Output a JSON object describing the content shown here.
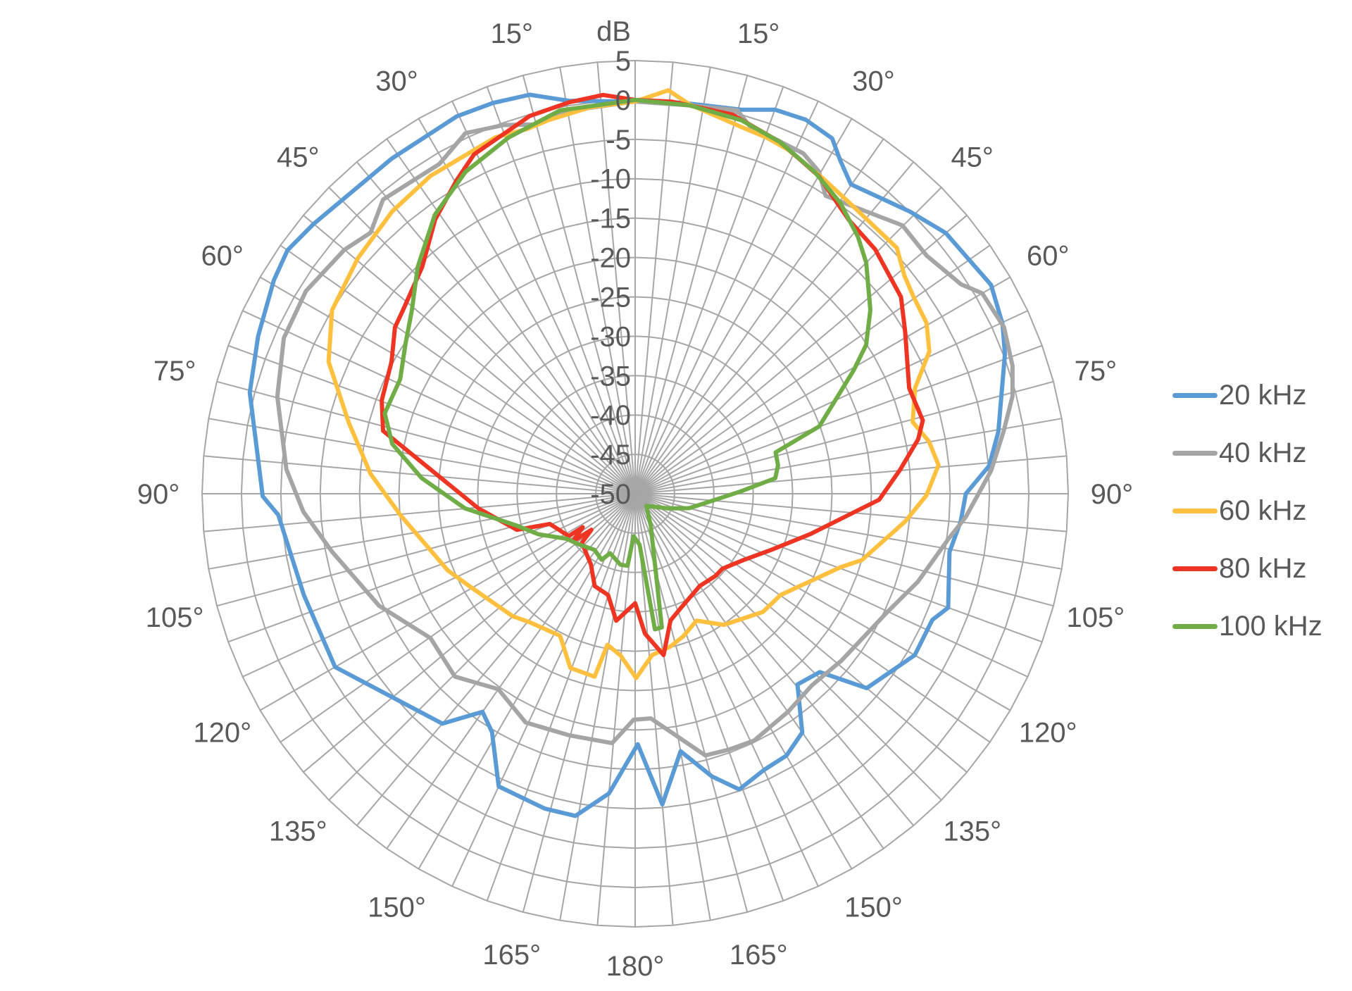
{
  "chart_data": {
    "type": "polar-line",
    "title": "",
    "radial_axis": {
      "label": "dB",
      "min": -50,
      "max": 5,
      "ticks": [
        5,
        0,
        -5,
        -10,
        -15,
        -20,
        -25,
        -30,
        -35,
        -40,
        -45,
        -50
      ],
      "tick_labels": [
        "5",
        "0",
        "-5",
        "-10",
        "-15",
        "-20",
        "-25",
        "-30",
        "-35",
        "-40",
        "-45",
        "-50"
      ]
    },
    "angular_axis": {
      "direction": "clockwise",
      "zero_at": "top",
      "spoke_step_deg": 5,
      "label_step_deg": 15,
      "tick_labels_right": [
        "15°",
        "30°",
        "45°",
        "60°",
        "75°",
        "90°",
        "105°",
        "120°",
        "135°",
        "150°",
        "165°"
      ],
      "tick_labels_left": [
        "15°",
        "30°",
        "45°",
        "60°",
        "75°",
        "90°",
        "105°",
        "120°",
        "135°",
        "150°",
        "165°"
      ],
      "bottom_label": "180°"
    },
    "grid": true,
    "legend_position": "right",
    "series": [
      {
        "name": "20 kHz",
        "color": "#5b9bd5",
        "points": [
          [
            0,
            -0.2
          ],
          [
            6.7,
            0
          ],
          [
            15.5,
            0.6
          ],
          [
            20,
            1.9
          ],
          [
            24.5,
            2.2
          ],
          [
            29,
            1.6
          ],
          [
            31.6,
            -0.3
          ],
          [
            34.9,
            -2.1
          ],
          [
            44.2,
            0
          ],
          [
            50,
            1.5
          ],
          [
            59.6,
            2.4
          ],
          [
            65.2,
            1.4
          ],
          [
            69.3,
            0.2
          ],
          [
            80.3,
            -3.2
          ],
          [
            85.5,
            -4.9
          ],
          [
            90,
            -8
          ],
          [
            94.8,
            -8.5
          ],
          [
            100.5,
            -9.4
          ],
          [
            110,
            -7.7
          ],
          [
            113,
            -9
          ],
          [
            120,
            -9
          ],
          [
            130,
            -11.6
          ],
          [
            134,
            -17.4
          ],
          [
            139.6,
            -18.2
          ],
          [
            145,
            -13
          ],
          [
            150,
            -11.6
          ],
          [
            155,
            -11.3
          ],
          [
            160.6,
            -10.2
          ],
          [
            164.8,
            -12.8
          ],
          [
            170,
            -16.8
          ],
          [
            175,
            -10.4
          ],
          [
            179.4,
            -18.2
          ],
          [
            185,
            -11.8
          ],
          [
            190.5,
            -8.4
          ],
          [
            196,
            -8.4
          ],
          [
            205,
            -9
          ],
          [
            211,
            -14.7
          ],
          [
            215,
            -16.2
          ],
          [
            220,
            -11.9
          ],
          [
            240,
            -6
          ],
          [
            253,
            -6
          ],
          [
            266.6,
            -4.6
          ],
          [
            269.6,
            -2.7
          ],
          [
            284.7,
            0.6
          ],
          [
            292.7,
            1.9
          ],
          [
            300.6,
            3.3
          ],
          [
            305,
            3.9
          ],
          [
            310,
            3.3
          ],
          [
            324,
            2.6
          ],
          [
            334.7,
            3
          ],
          [
            340,
            2.8
          ],
          [
            345.2,
            2.4
          ],
          [
            350.4,
            0.6
          ]
        ]
      },
      {
        "name": "40 kHz",
        "color": "#a5a5a5",
        "points": [
          [
            0,
            -0.2
          ],
          [
            8,
            -0.2
          ],
          [
            14.9,
            0.4
          ],
          [
            17.3,
            -1.1
          ],
          [
            26.3,
            -1.8
          ],
          [
            29.7,
            -2.9
          ],
          [
            32.6,
            -5.1
          ],
          [
            44.9,
            -1.9
          ],
          [
            50.8,
            -2.2
          ],
          [
            57.3,
            -0.8
          ],
          [
            60,
            0.9
          ],
          [
            65.7,
            1.4
          ],
          [
            71.3,
            0.6
          ],
          [
            75.5,
            -0.5
          ],
          [
            80.3,
            -2.5
          ],
          [
            86.3,
            -4.7
          ],
          [
            94,
            -7.9
          ],
          [
            98.2,
            -9.8
          ],
          [
            107.3,
            -12.4
          ],
          [
            115,
            -14.6
          ],
          [
            129,
            -16.3
          ],
          [
            137.3,
            -16.9
          ],
          [
            144.8,
            -16.2
          ],
          [
            154.3,
            -15.2
          ],
          [
            160,
            -15.4
          ],
          [
            165,
            -15.6
          ],
          [
            176,
            -21.4
          ],
          [
            180.4,
            -21.3
          ],
          [
            185.3,
            -18.2
          ],
          [
            195.4,
            -18.2
          ],
          [
            205.6,
            -17.8
          ],
          [
            215,
            -19.7
          ],
          [
            224.6,
            -17.4
          ],
          [
            234.8,
            -18.2
          ],
          [
            246.4,
            -14.5
          ],
          [
            259.2,
            -10.8
          ],
          [
            266.9,
            -7.8
          ],
          [
            274,
            -5.6
          ],
          [
            285.2,
            -2.9
          ],
          [
            293.9,
            -1.2
          ],
          [
            301.6,
            -0.9
          ],
          [
            310,
            -1.8
          ],
          [
            314.6,
            -2.8
          ],
          [
            319.4,
            -0.8
          ],
          [
            329.3,
            -1.3
          ],
          [
            334.8,
            0.6
          ],
          [
            340.4,
            -0.3
          ],
          [
            344.7,
            -1.4
          ],
          [
            348.9,
            -0.6
          ]
        ]
      },
      {
        "name": "60 kHz",
        "color": "#ffc03f",
        "points": [
          [
            0,
            -0.2
          ],
          [
            4.7,
            1.4
          ],
          [
            8,
            -0.1
          ],
          [
            16,
            -1.5
          ],
          [
            20.3,
            -1.8
          ],
          [
            24,
            -2.2
          ],
          [
            30.8,
            -3.4
          ],
          [
            36.3,
            -4.1
          ],
          [
            46.8,
            -4.4
          ],
          [
            51,
            -6
          ],
          [
            54.8,
            -6.7
          ],
          [
            59.6,
            -7.1
          ],
          [
            64.2,
            -8.5
          ],
          [
            69.3,
            -12
          ],
          [
            75.5,
            -13.6
          ],
          [
            79.9,
            -12.1
          ],
          [
            84.6,
            -11.3
          ],
          [
            90.3,
            -13
          ],
          [
            95.8,
            -15.5
          ],
          [
            106.3,
            -20
          ],
          [
            109.7,
            -22.3
          ],
          [
            124.9,
            -27.5
          ],
          [
            132.8,
            -27.9
          ],
          [
            145.9,
            -29.9
          ],
          [
            154.2,
            -32.1
          ],
          [
            161.3,
            -30.9
          ],
          [
            167,
            -30.1
          ],
          [
            174,
            -29.4
          ],
          [
            179.7,
            -26.6
          ],
          [
            185.2,
            -29.4
          ],
          [
            190.4,
            -30.5
          ],
          [
            192.5,
            -26.2
          ],
          [
            200.4,
            -26.4
          ],
          [
            207.9,
            -29.6
          ],
          [
            219.3,
            -28.9
          ],
          [
            225,
            -28
          ],
          [
            240.9,
            -25.9
          ],
          [
            247.7,
            -24.3
          ],
          [
            264.7,
            -20.1
          ],
          [
            274.3,
            -16.3
          ],
          [
            284,
            -12.5
          ],
          [
            293.3,
            -7.6
          ],
          [
            301.2,
            -5
          ],
          [
            310.3,
            -3.8
          ],
          [
            319.3,
            -2.7
          ],
          [
            327.2,
            -2
          ],
          [
            338.6,
            -1.4
          ],
          [
            343.5,
            -1.7
          ],
          [
            346.9,
            -1.3
          ],
          [
            353.4,
            -0.6
          ]
        ]
      },
      {
        "name": "80 kHz",
        "color": "#ee3524",
        "points": [
          [
            0,
            0
          ],
          [
            5.4,
            0
          ],
          [
            14.4,
            -0.3
          ],
          [
            22.4,
            -1.7
          ],
          [
            30,
            -3.4
          ],
          [
            38,
            -5.9
          ],
          [
            44.5,
            -6.5
          ],
          [
            53.5,
            -8
          ],
          [
            59,
            -10
          ],
          [
            68.9,
            -12.7
          ],
          [
            75.7,
            -12.3
          ],
          [
            79.1,
            -13.4
          ],
          [
            84.8,
            -16.2
          ],
          [
            91.4,
            -19
          ],
          [
            103,
            -27.2
          ],
          [
            112.4,
            -31.3
          ],
          [
            121.6,
            -33.9
          ],
          [
            130.7,
            -35.4
          ],
          [
            135.6,
            -35.4
          ],
          [
            145,
            -35.7
          ],
          [
            158,
            -34.4
          ],
          [
            164.4,
            -33.3
          ],
          [
            170,
            -29.2
          ],
          [
            176,
            -32.2
          ],
          [
            180,
            -36.1
          ],
          [
            188.5,
            -33.7
          ],
          [
            195,
            -36.7
          ],
          [
            203.7,
            -37.2
          ],
          [
            212,
            -39.4
          ],
          [
            227.4,
            -40.8
          ],
          [
            230.5,
            -42.8
          ],
          [
            232.6,
            -40
          ],
          [
            237.4,
            -42.1
          ],
          [
            237.5,
            -40
          ],
          [
            250.5,
            -38.5
          ],
          [
            253,
            -34.3
          ],
          [
            264.7,
            -30
          ],
          [
            284,
            -17
          ],
          [
            290.2,
            -15.7
          ],
          [
            298.5,
            -14.8
          ],
          [
            304.7,
            -12.9
          ],
          [
            308.4,
            -12.4
          ],
          [
            316.8,
            -10.5
          ],
          [
            323.9,
            -6.9
          ],
          [
            330.3,
            -4.2
          ],
          [
            334.6,
            -2.3
          ],
          [
            344.4,
            -0.2
          ],
          [
            350.4,
            0.4
          ],
          [
            355.4,
            0.8
          ]
        ]
      },
      {
        "name": "100 kHz",
        "color": "#70ad47",
        "points": [
          [
            0,
            0
          ],
          [
            8,
            -0.2
          ],
          [
            15.9,
            -0.7
          ],
          [
            22.4,
            -1.7
          ],
          [
            29.1,
            -3.2
          ],
          [
            35.2,
            -4.8
          ],
          [
            40.9,
            -6.8
          ],
          [
            45,
            -8.5
          ],
          [
            52,
            -12.1
          ],
          [
            57.2,
            -15.1
          ],
          [
            60.5,
            -18.1
          ],
          [
            69.9,
            -25.1
          ],
          [
            73.6,
            -31.4
          ],
          [
            78.8,
            -31.5
          ],
          [
            83.7,
            -32.1
          ],
          [
            88.6,
            -36.5
          ],
          [
            96.9,
            -40.8
          ],
          [
            105,
            -42.9
          ],
          [
            114,
            -45.4
          ],
          [
            137,
            -47.9
          ],
          [
            154,
            -45.5
          ],
          [
            168.7,
            -32.7
          ],
          [
            171.7,
            -32.6
          ],
          [
            175,
            -43.5
          ],
          [
            182,
            -44.6
          ],
          [
            186,
            -40.8
          ],
          [
            191.7,
            -40.8
          ],
          [
            202.8,
            -41.8
          ],
          [
            206.9,
            -40.6
          ],
          [
            215.9,
            -41.2
          ],
          [
            227.8,
            -40.4
          ],
          [
            236.6,
            -39.6
          ],
          [
            247.2,
            -36.7
          ],
          [
            255,
            -34.4
          ],
          [
            265.1,
            -28.3
          ],
          [
            274.2,
            -22.8
          ],
          [
            281.6,
            -18.5
          ],
          [
            287.8,
            -16.6
          ],
          [
            296,
            -16.8
          ],
          [
            303,
            -15.2
          ],
          [
            309.4,
            -13.3
          ],
          [
            316.2,
            -10.1
          ],
          [
            324.3,
            -6.4
          ],
          [
            332.2,
            -3.8
          ],
          [
            340.4,
            -2
          ],
          [
            348.9,
            -0.4
          ]
        ]
      }
    ]
  },
  "legend": {
    "items": [
      {
        "label": "20 kHz",
        "color": "#5b9bd5"
      },
      {
        "label": "40 kHz",
        "color": "#a5a5a5"
      },
      {
        "label": "60 kHz",
        "color": "#ffc03f"
      },
      {
        "label": "80 kHz",
        "color": "#ee3524"
      },
      {
        "label": "100 kHz",
        "color": "#70ad47"
      }
    ]
  },
  "style": {
    "grid_color": "#a6a6a6",
    "text_color": "#595959"
  }
}
